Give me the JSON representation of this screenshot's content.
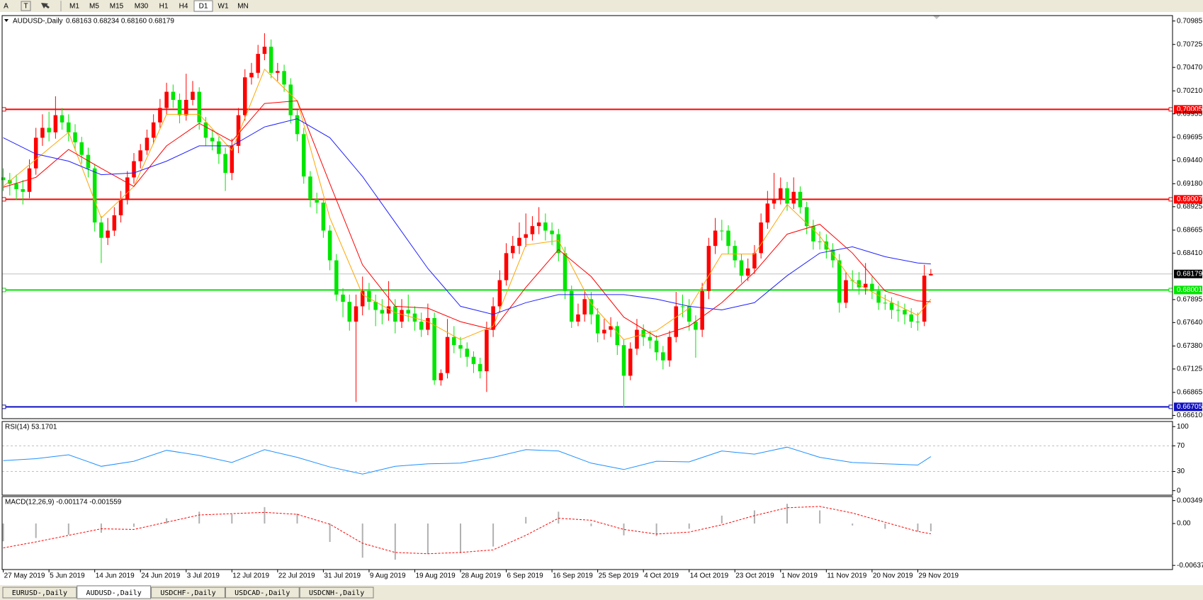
{
  "toolbar": {
    "tools": [
      "A",
      "T"
    ],
    "timeframes": [
      "M1",
      "M5",
      "M15",
      "M30",
      "H1",
      "H4",
      "D1",
      "W1",
      "MN"
    ],
    "active": 6
  },
  "tabs": {
    "items": [
      "EURUSD-,Daily",
      "AUDUSD-,Daily",
      "USDCHF-,Daily",
      "USDCAD-,Daily",
      "USDCNH-,Daily"
    ],
    "active": 1
  },
  "chart_data": [
    {
      "type": "candlestick",
      "title": "AUDUSD-,Daily",
      "subtitle": "0.68163 0.68234 0.68160 0.68179",
      "up_color": "#ff0000",
      "down_color": "#00e600",
      "bid_color": "#c0c0c0",
      "xlim": [
        -0.5,
        179
      ],
      "xticks": [
        {
          "value": 0,
          "label": "27 May 2019"
        },
        {
          "value": 7,
          "label": "5 Jun 2019"
        },
        {
          "value": 14,
          "label": "14 Jun 2019"
        },
        {
          "value": 21,
          "label": "24 Jun 2019"
        },
        {
          "value": 28,
          "label": "3 Jul 2019"
        },
        {
          "value": 35,
          "label": "12 Jul 2019"
        },
        {
          "value": 42,
          "label": "22 Jul 2019"
        },
        {
          "value": 49,
          "label": "31 Jul 2019"
        },
        {
          "value": 56,
          "label": "9 Aug 2019"
        },
        {
          "value": 63,
          "label": "19 Aug 2019"
        },
        {
          "value": 70,
          "label": "28 Aug 2019"
        },
        {
          "value": 77,
          "label": "6 Sep 2019"
        },
        {
          "value": 84,
          "label": "16 Sep 2019"
        },
        {
          "value": 91,
          "label": "25 Sep 2019"
        },
        {
          "value": 98,
          "label": "4 Oct 2019"
        },
        {
          "value": 105,
          "label": "14 Oct 2019"
        },
        {
          "value": 112,
          "label": "23 Oct 2019"
        },
        {
          "value": 119,
          "label": "1 Nov 2019"
        },
        {
          "value": 126,
          "label": "11 Nov 2019"
        },
        {
          "value": 133,
          "label": "20 Nov 2019"
        },
        {
          "value": 140,
          "label": "29 Nov 2019"
        }
      ],
      "ylim": [
        0.66574,
        0.71045
      ],
      "yticks": [
        0.70985,
        0.70725,
        {
          "value": 0.7047,
          "label": "0.70470"
        },
        {
          "value": 0.7021,
          "label": "0.70210"
        },
        0.69955,
        0.69695,
        {
          "value": 0.6944,
          "label": "0.69440"
        },
        {
          "value": 0.6918,
          "label": "0.69180"
        },
        0.68925,
        0.68665,
        {
          "value": 0.6841,
          "label": "0.68410"
        },
        0.67895,
        {
          "value": 0.6764,
          "label": "0.67640"
        },
        {
          "value": 0.6738,
          "label": "0.67380"
        },
        0.67125,
        0.66865,
        {
          "value": 0.6661,
          "label": "0.66610"
        }
      ],
      "open": [
        0.6925,
        0.6922,
        0.6918,
        0.6912,
        0.6909,
        0.6935,
        0.6969,
        0.698,
        0.6975,
        0.6994,
        0.6986,
        0.6975,
        0.6964,
        0.695,
        0.6935,
        0.6875,
        0.6858,
        0.6866,
        0.6883,
        0.69,
        0.6925,
        0.6943,
        0.6955,
        0.6969,
        0.6986,
        0.7002,
        0.702,
        0.7011,
        0.6994,
        0.7011,
        0.702,
        0.6986,
        0.6969,
        0.6965,
        0.6951,
        0.693,
        0.696,
        0.6994,
        0.7036,
        0.7041,
        0.7062,
        0.707,
        0.7041,
        0.7043,
        0.7028,
        0.6994,
        0.6973,
        0.6926,
        0.6901,
        0.6897,
        0.6866,
        0.6833,
        0.6795,
        0.6787,
        0.6765,
        0.6782,
        0.6799,
        0.6787,
        0.6778,
        0.6774,
        0.6782,
        0.6765,
        0.6778,
        0.6774,
        0.6765,
        0.6756,
        0.6769,
        0.67,
        0.6708,
        0.6748,
        0.6739,
        0.6735,
        0.6726,
        0.6718,
        0.671,
        0.6756,
        0.6782,
        0.6811,
        0.6841,
        0.6849,
        0.6858,
        0.6862,
        0.6871,
        0.6875,
        0.6866,
        0.6862,
        0.6841,
        0.6799,
        0.6765,
        0.6773,
        0.679,
        0.6773,
        0.6752,
        0.6756,
        0.676,
        0.6739,
        0.6705,
        0.6735,
        0.6756,
        0.6748,
        0.6744,
        0.6731,
        0.6722,
        0.6748,
        0.6782,
        0.6782,
        0.6765,
        0.6756,
        0.6799,
        0.6849,
        0.6866,
        0.6866,
        0.6849,
        0.6833,
        0.6816,
        0.6824,
        0.6841,
        0.6875,
        0.6896,
        0.6901,
        0.6913,
        0.6896,
        0.6909,
        0.6892,
        0.6871,
        0.6854,
        0.6854,
        0.6845,
        0.6833,
        0.6786,
        0.6811,
        0.6811,
        0.6803,
        0.6807,
        0.6799,
        0.6786,
        0.6786,
        0.6778,
        0.6778,
        0.6773,
        0.6765,
        0.6765,
        0.68163
      ],
      "high": [
        0.6935,
        0.693,
        0.6928,
        0.6922,
        0.6945,
        0.698,
        0.6995,
        0.6998,
        0.7015,
        0.7002,
        0.6995,
        0.6984,
        0.697,
        0.6958,
        0.694,
        0.6882,
        0.688,
        0.6892,
        0.691,
        0.6932,
        0.6952,
        0.6962,
        0.6978,
        0.6995,
        0.7012,
        0.703,
        0.7028,
        0.7018,
        0.704,
        0.7032,
        0.7025,
        0.6992,
        0.6978,
        0.697,
        0.6958,
        0.6968,
        0.7002,
        0.7045,
        0.7052,
        0.7072,
        0.7085,
        0.7078,
        0.7052,
        0.705,
        0.7035,
        0.7,
        0.698,
        0.6932,
        0.6908,
        0.6902,
        0.6872,
        0.684,
        0.6802,
        0.6795,
        0.6795,
        0.6815,
        0.6808,
        0.6795,
        0.679,
        0.681,
        0.679,
        0.679,
        0.6795,
        0.6782,
        0.6775,
        0.6785,
        0.6775,
        0.6712,
        0.6768,
        0.676,
        0.6748,
        0.6742,
        0.6732,
        0.6725,
        0.6765,
        0.6792,
        0.6822,
        0.6852,
        0.686,
        0.6875,
        0.6885,
        0.6882,
        0.6892,
        0.6885,
        0.6875,
        0.6868,
        0.6848,
        0.6805,
        0.6785,
        0.68,
        0.6798,
        0.678,
        0.6768,
        0.677,
        0.6765,
        0.6745,
        0.6742,
        0.6768,
        0.6762,
        0.6755,
        0.675,
        0.6738,
        0.6755,
        0.6798,
        0.6795,
        0.679,
        0.6772,
        0.6808,
        0.6858,
        0.688,
        0.6878,
        0.6872,
        0.6855,
        0.684,
        0.6835,
        0.685,
        0.6885,
        0.691,
        0.693,
        0.6925,
        0.692,
        0.6925,
        0.6915,
        0.6898,
        0.6878,
        0.6865,
        0.6862,
        0.6852,
        0.684,
        0.682,
        0.6822,
        0.682,
        0.683,
        0.6815,
        0.6805,
        0.6795,
        0.6792,
        0.6788,
        0.6785,
        0.678,
        0.6775,
        0.6828,
        0.68234
      ],
      "low": [
        0.691,
        0.6905,
        0.69,
        0.6895,
        0.6902,
        0.6928,
        0.696,
        0.6965,
        0.6968,
        0.6978,
        0.6965,
        0.6955,
        0.694,
        0.6925,
        0.6865,
        0.683,
        0.685,
        0.686,
        0.6875,
        0.6895,
        0.6918,
        0.6935,
        0.695,
        0.6962,
        0.698,
        0.6995,
        0.7002,
        0.6985,
        0.6988,
        0.7005,
        0.6978,
        0.696,
        0.6955,
        0.694,
        0.691,
        0.6922,
        0.6952,
        0.6988,
        0.7028,
        0.7035,
        0.7055,
        0.7035,
        0.7032,
        0.702,
        0.6985,
        0.6965,
        0.6918,
        0.6892,
        0.6885,
        0.6858,
        0.6822,
        0.6788,
        0.677,
        0.6755,
        0.6676,
        0.6772,
        0.6778,
        0.676,
        0.6762,
        0.6766,
        0.6752,
        0.6758,
        0.6765,
        0.6755,
        0.6748,
        0.675,
        0.6695,
        0.6694,
        0.6702,
        0.673,
        0.6725,
        0.6715,
        0.6708,
        0.6702,
        0.6687,
        0.6748,
        0.6775,
        0.6805,
        0.6835,
        0.684,
        0.6848,
        0.6855,
        0.6862,
        0.6855,
        0.685,
        0.6832,
        0.679,
        0.6758,
        0.676,
        0.6765,
        0.6762,
        0.6742,
        0.6745,
        0.6748,
        0.6728,
        0.667,
        0.67,
        0.6728,
        0.6738,
        0.6735,
        0.6722,
        0.6712,
        0.6715,
        0.6742,
        0.677,
        0.6755,
        0.6725,
        0.6748,
        0.679,
        0.684,
        0.6855,
        0.684,
        0.6825,
        0.6808,
        0.681,
        0.6818,
        0.6835,
        0.6868,
        0.689,
        0.6895,
        0.6888,
        0.689,
        0.6885,
        0.6862,
        0.6845,
        0.6845,
        0.6835,
        0.6825,
        0.6775,
        0.678,
        0.68,
        0.6795,
        0.6795,
        0.679,
        0.6778,
        0.6778,
        0.6768,
        0.6765,
        0.6762,
        0.6758,
        0.6755,
        0.676,
        0.6816
      ],
      "close": [
        0.6922,
        0.6918,
        0.6912,
        0.6909,
        0.6935,
        0.6969,
        0.698,
        0.6975,
        0.6994,
        0.6986,
        0.6975,
        0.6964,
        0.695,
        0.6935,
        0.6875,
        0.6858,
        0.6866,
        0.6883,
        0.69,
        0.6925,
        0.6943,
        0.6955,
        0.6969,
        0.6986,
        0.7002,
        0.702,
        0.7011,
        0.6994,
        0.7011,
        0.702,
        0.6986,
        0.6969,
        0.6965,
        0.6951,
        0.693,
        0.696,
        0.6994,
        0.7036,
        0.7041,
        0.7062,
        0.707,
        0.7041,
        0.7043,
        0.7028,
        0.6994,
        0.6973,
        0.6926,
        0.6901,
        0.6897,
        0.6866,
        0.6833,
        0.6795,
        0.6787,
        0.6765,
        0.6782,
        0.6799,
        0.6787,
        0.6778,
        0.6774,
        0.6782,
        0.6765,
        0.6778,
        0.6774,
        0.6765,
        0.6756,
        0.6769,
        0.67,
        0.6708,
        0.6748,
        0.6739,
        0.6735,
        0.6726,
        0.6718,
        0.671,
        0.6756,
        0.6782,
        0.6811,
        0.6841,
        0.6849,
        0.6858,
        0.6862,
        0.6871,
        0.6875,
        0.6866,
        0.6862,
        0.6841,
        0.6799,
        0.6765,
        0.6773,
        0.679,
        0.6773,
        0.6752,
        0.6756,
        0.676,
        0.6739,
        0.6705,
        0.6735,
        0.6756,
        0.6748,
        0.6744,
        0.6731,
        0.6722,
        0.6748,
        0.6782,
        0.6782,
        0.6765,
        0.6756,
        0.6799,
        0.6849,
        0.6866,
        0.6866,
        0.6849,
        0.6833,
        0.6816,
        0.6824,
        0.6841,
        0.6875,
        0.6896,
        0.6901,
        0.6913,
        0.6896,
        0.6909,
        0.6892,
        0.6871,
        0.6854,
        0.6854,
        0.6845,
        0.6833,
        0.6786,
        0.6811,
        0.6811,
        0.6803,
        0.6807,
        0.6799,
        0.6786,
        0.6786,
        0.6778,
        0.6778,
        0.6773,
        0.6765,
        0.6765,
        0.6816,
        0.68179
      ],
      "ma_x": [
        0,
        5,
        10,
        15,
        20,
        25,
        30,
        35,
        40,
        45,
        50,
        55,
        60,
        65,
        70,
        75,
        80,
        85,
        90,
        95,
        100,
        105,
        110,
        115,
        120,
        125,
        130,
        135,
        140,
        142
      ],
      "ma": [
        {
          "color": "#ffa500",
          "values": [
            0.6915,
            0.6945,
            0.6975,
            0.688,
            0.6915,
            0.6995,
            0.6995,
            0.6955,
            0.7045,
            0.701,
            0.688,
            0.6795,
            0.6775,
            0.6765,
            0.6745,
            0.676,
            0.685,
            0.6855,
            0.6785,
            0.6745,
            0.6755,
            0.678,
            0.684,
            0.684,
            0.6895,
            0.686,
            0.681,
            0.679,
            0.6772,
            0.679
          ]
        },
        {
          "color": "#ff0000",
          "values": [
            0.6914,
            0.6925,
            0.6956,
            0.6935,
            0.6915,
            0.696,
            0.6985,
            0.6965,
            0.7007,
            0.701,
            0.6918,
            0.6828,
            0.6782,
            0.678,
            0.6765,
            0.6756,
            0.6803,
            0.6845,
            0.6815,
            0.677,
            0.6748,
            0.676,
            0.6786,
            0.682,
            0.6862,
            0.6873,
            0.6841,
            0.6799,
            0.6788,
            0.6787
          ]
        },
        {
          "color": "#2020ff",
          "values": [
            0.6969,
            0.6951,
            0.6943,
            0.6928,
            0.693,
            0.6943,
            0.696,
            0.696,
            0.6981,
            0.699,
            0.6969,
            0.6926,
            0.6875,
            0.6824,
            0.6782,
            0.6773,
            0.6786,
            0.6795,
            0.6795,
            0.6795,
            0.679,
            0.6782,
            0.6778,
            0.6786,
            0.6816,
            0.6841,
            0.6848,
            0.6837,
            0.683,
            0.6829
          ]
        }
      ],
      "levels": [
        {
          "value": 0.70005,
          "color": "#ff0000"
        },
        {
          "value": 0.69007,
          "color": "#ff0000"
        },
        {
          "value": 0.68001,
          "color": "#00e600"
        },
        {
          "value": 0.66705,
          "color": "#1010c0"
        }
      ]
    },
    {
      "type": "line",
      "title": "RSI(14) 53.1701",
      "color": "#1e90ff",
      "ylim": [
        -7,
        108
      ],
      "yticks": [
        100,
        70,
        30,
        0
      ],
      "levels": [
        70,
        30
      ],
      "x": [
        0,
        5,
        10,
        15,
        20,
        25,
        30,
        35,
        40,
        45,
        50,
        55,
        60,
        65,
        70,
        75,
        80,
        85,
        90,
        95,
        100,
        105,
        110,
        115,
        120,
        125,
        130,
        135,
        140,
        142
      ],
      "values": [
        47,
        50,
        56,
        38,
        46,
        63,
        55,
        44,
        64,
        52,
        37,
        26,
        38,
        42,
        43,
        52,
        64,
        62,
        43,
        33,
        46,
        45,
        62,
        57,
        68,
        52,
        44,
        42,
        40,
        53.17
      ]
    },
    {
      "type": "macd",
      "title": "MACD(12,26,9) -0.001174 -0.001559",
      "hist_color": "#b0b0b0",
      "signal_color": "#ff0000",
      "ylim": [
        -0.007,
        0.0041
      ],
      "yticks": [
        0.00349,
        {
          "value": 0,
          "label": "0.00"
        },
        -0.00637
      ],
      "x": [
        0,
        5,
        10,
        15,
        20,
        25,
        30,
        35,
        40,
        45,
        50,
        55,
        60,
        65,
        70,
        75,
        80,
        85,
        90,
        95,
        100,
        105,
        110,
        115,
        120,
        125,
        130,
        135,
        140,
        142
      ],
      "values": [
        -0.0027,
        -0.0022,
        -0.0017,
        -0.0014,
        -0.0005,
        0.0008,
        0.0018,
        0.0014,
        0.0025,
        0.0015,
        -0.0028,
        -0.0052,
        -0.0055,
        -0.0046,
        -0.0045,
        -0.0035,
        0.001,
        0.0018,
        -0.0004,
        -0.0018,
        -0.0019,
        -0.0008,
        0.0012,
        0.002,
        0.003,
        0.002,
        -0.0003,
        -0.0008,
        -0.0012,
        -0.001174
      ],
      "signal": [
        -0.0037,
        -0.0028,
        -0.0018,
        -0.0008,
        -0.0009,
        0.0002,
        0.0013,
        0.0015,
        0.0017,
        0.0014,
        -0.0001,
        -0.003,
        -0.0044,
        -0.0046,
        -0.0044,
        -0.004,
        -0.0018,
        0.0008,
        0.0005,
        -0.0009,
        -0.0016,
        -0.0013,
        -0.0002,
        0.0012,
        0.0024,
        0.0026,
        0.0016,
        0.0002,
        -0.0012,
        -0.001559
      ]
    }
  ]
}
